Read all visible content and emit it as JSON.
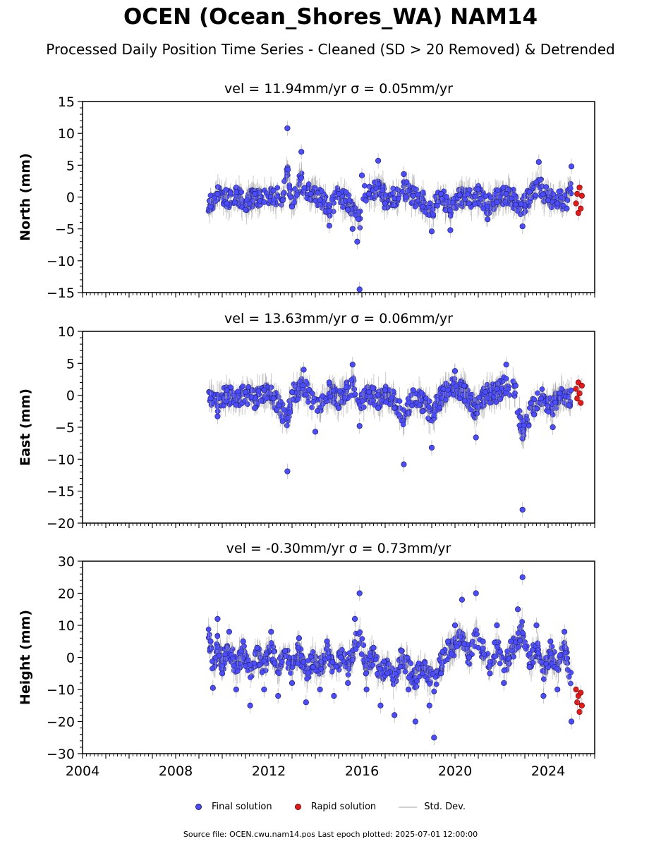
{
  "title": "OCEN (Ocean_Shores_WA) NAM14",
  "subtitle": "Processed Daily Position Time Series - Cleaned (SD > 20 Removed) & Detrended",
  "legend": {
    "final": "Final solution",
    "rapid": "Rapid solution",
    "std": "Std. Dev."
  },
  "source_note": "Source file: OCEN.cwu.nam14.pos  Last epoch plotted: 2025-07-01 12:00:00",
  "colors": {
    "final": "#4b4bff",
    "rapid": "#e41a1a",
    "std": "#a0a0a0",
    "marker_edge": "#1a1a4a"
  },
  "chart_data": [
    {
      "type": "scatter",
      "panel": "north",
      "title": "vel = 11.94mm/yr   σ = 0.05mm/yr",
      "ylabel": "North (mm)",
      "xlim": [
        2004.0,
        2026.0
      ],
      "ylim": [
        -15,
        15
      ],
      "yticks": [
        -15,
        -10,
        -5,
        0,
        5,
        10,
        15
      ],
      "ytick_labels": [
        "−15",
        "−10",
        "−5",
        "0",
        "5",
        "10",
        "15"
      ],
      "grid": false,
      "series": [
        {
          "name": "Final solution",
          "x": [
            2009.5,
            2009.8,
            2010.2,
            2010.6,
            2011.0,
            2011.4,
            2011.8,
            2012.2,
            2012.6,
            2012.8,
            2013.0,
            2013.4,
            2013.8,
            2014.2,
            2014.6,
            2015.0,
            2015.4,
            2015.6,
            2015.8,
            2015.9,
            2016.0,
            2016.3,
            2016.7,
            2017.0,
            2017.4,
            2017.8,
            2018.2,
            2018.6,
            2019.0,
            2019.4,
            2019.8,
            2020.2,
            2020.6,
            2021.0,
            2021.4,
            2021.8,
            2022.2,
            2022.6,
            2022.9,
            2023.2,
            2023.6,
            2024.0,
            2024.4,
            2024.8,
            2025.0
          ],
          "y": [
            -1.5,
            0.5,
            -1.0,
            0.8,
            -2.0,
            0.5,
            -0.8,
            1.0,
            -0.5,
            10.8,
            -1.5,
            7.1,
            0.5,
            -0.5,
            -4.5,
            0.5,
            -2.0,
            -5.0,
            -7.0,
            -14.5,
            3.4,
            0.5,
            5.7,
            -1.0,
            -0.2,
            3.6,
            0.2,
            -1.5,
            -5.4,
            0.5,
            -5.2,
            0.3,
            -1.0,
            1.2,
            -3.5,
            -0.8,
            0.5,
            -1.2,
            -4.6,
            0.8,
            5.5,
            -0.5,
            -1.0,
            -1.8,
            4.8
          ]
        },
        {
          "name": "Rapid solution",
          "x": [
            2025.2,
            2025.25,
            2025.3,
            2025.35,
            2025.4,
            2025.45
          ],
          "y": [
            -1.0,
            0.5,
            -2.5,
            1.5,
            -1.8,
            0.2
          ]
        }
      ]
    },
    {
      "type": "scatter",
      "panel": "east",
      "title": "vel = 13.63mm/yr   σ = 0.06mm/yr",
      "ylabel": "East (mm)",
      "xlim": [
        2004.0,
        2026.0
      ],
      "ylim": [
        -20,
        10
      ],
      "yticks": [
        -20,
        -15,
        -10,
        -5,
        0,
        5,
        10
      ],
      "ytick_labels": [
        "−20",
        "−15",
        "−10",
        "−5",
        "0",
        "5",
        "10"
      ],
      "grid": false,
      "series": [
        {
          "name": "Final solution",
          "x": [
            2009.5,
            2009.8,
            2010.2,
            2010.6,
            2011.0,
            2011.4,
            2011.8,
            2012.2,
            2012.8,
            2013.0,
            2013.5,
            2014.0,
            2014.6,
            2015.0,
            2015.6,
            2015.9,
            2016.3,
            2016.7,
            2017.0,
            2017.4,
            2017.8,
            2018.2,
            2018.6,
            2019.0,
            2019.5,
            2020.0,
            2020.4,
            2020.9,
            2021.3,
            2021.8,
            2022.2,
            2022.6,
            2022.9,
            2023.4,
            2023.7,
            2024.2,
            2024.5,
            2024.9
          ],
          "y": [
            -0.5,
            -3.3,
            0.8,
            -1.5,
            0.5,
            -2.0,
            0.8,
            -0.5,
            -11.9,
            0.5,
            4.0,
            -5.7,
            2.0,
            -2.0,
            4.8,
            -4.8,
            0.5,
            -2.0,
            0.8,
            -2.0,
            -10.8,
            0.8,
            -2.5,
            -8.2,
            1.0,
            3.8,
            1.5,
            -6.6,
            0.5,
            1.0,
            4.8,
            1.5,
            -17.9,
            -3.0,
            -0.5,
            -5.0,
            0.3,
            -1.5
          ]
        },
        {
          "name": "Rapid solution",
          "x": [
            2025.2,
            2025.25,
            2025.3,
            2025.35,
            2025.4,
            2025.45
          ],
          "y": [
            1.0,
            -0.5,
            2.0,
            0.3,
            -1.2,
            1.5
          ]
        }
      ]
    },
    {
      "type": "scatter",
      "panel": "height",
      "title": "vel = -0.30mm/yr   σ = 0.73mm/yr",
      "ylabel": "Height (mm)",
      "xlim": [
        2004.0,
        2026.0
      ],
      "ylim": [
        -30,
        30
      ],
      "yticks": [
        -30,
        -20,
        -10,
        0,
        10,
        20,
        30
      ],
      "ytick_labels": [
        "−30",
        "−20",
        "−10",
        "0",
        "10",
        "20",
        "30"
      ],
      "xticks": [
        2004,
        2008,
        2012,
        2016,
        2020,
        2024
      ],
      "xtick_labels": [
        "2004",
        "2008",
        "2012",
        "2016",
        "2020",
        "2024"
      ],
      "grid": false,
      "series": [
        {
          "name": "Final solution",
          "x": [
            2009.5,
            2009.6,
            2009.8,
            2010.0,
            2010.3,
            2010.6,
            2010.9,
            2011.2,
            2011.5,
            2011.8,
            2012.1,
            2012.4,
            2012.7,
            2013.0,
            2013.3,
            2013.6,
            2013.9,
            2014.2,
            2014.5,
            2014.8,
            2015.1,
            2015.4,
            2015.7,
            2015.9,
            2016.2,
            2016.5,
            2016.8,
            2017.1,
            2017.4,
            2017.7,
            2018.0,
            2018.3,
            2018.6,
            2018.9,
            2019.1,
            2019.4,
            2019.7,
            2020.0,
            2020.3,
            2020.6,
            2020.9,
            2021.2,
            2021.5,
            2021.8,
            2022.1,
            2022.4,
            2022.7,
            2022.9,
            2023.2,
            2023.5,
            2023.8,
            2024.1,
            2024.4,
            2024.7,
            2025.0
          ],
          "y": [
            5.0,
            -9.5,
            12.0,
            -5.0,
            8.0,
            -10.0,
            5.0,
            -15.0,
            3.0,
            -10.0,
            8.0,
            -12.0,
            2.0,
            -8.0,
            6.0,
            -14.0,
            -3.0,
            -10.0,
            5.0,
            -12.0,
            0.0,
            -8.0,
            12.0,
            20.0,
            -10.0,
            3.0,
            -15.0,
            -5.0,
            -18.0,
            2.0,
            -10.0,
            -20.0,
            -5.0,
            -15.0,
            -25.0,
            -5.0,
            5.0,
            10.0,
            18.0,
            0.0,
            20.0,
            5.0,
            -5.0,
            10.0,
            -8.0,
            5.0,
            15.0,
            25.0,
            -3.0,
            10.0,
            -12.0,
            5.0,
            -10.0,
            8.0,
            -20.0
          ]
        },
        {
          "name": "Rapid solution",
          "x": [
            2025.2,
            2025.25,
            2025.3,
            2025.35,
            2025.4,
            2025.45
          ],
          "y": [
            -10.0,
            -14.0,
            -12.0,
            -17.0,
            -11.0,
            -15.0
          ]
        }
      ]
    }
  ]
}
